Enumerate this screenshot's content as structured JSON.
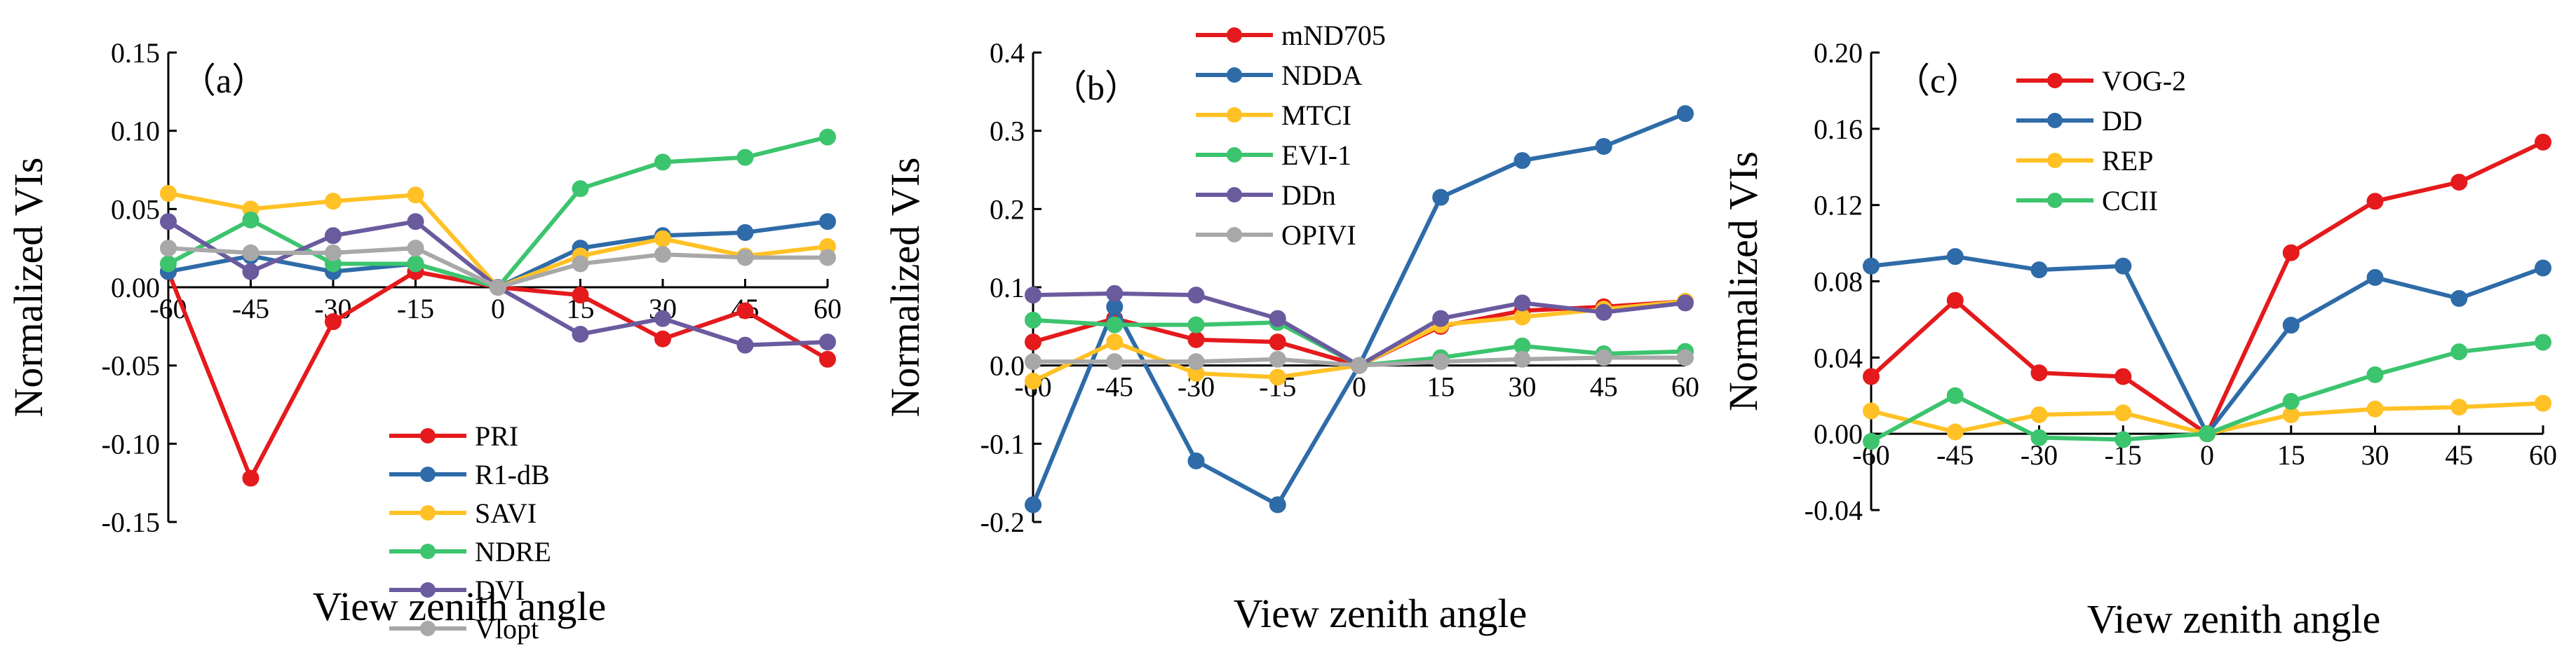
{
  "chart_data": [
    {
      "type": "line",
      "panel_label": "（a）",
      "xlabel": "View zenith angle",
      "ylabel": "Normalized VIs",
      "x": [
        -60,
        -45,
        -30,
        -15,
        0,
        15,
        30,
        45,
        60
      ],
      "x_ticks": [
        "-60",
        "-45",
        "-30",
        "-15",
        "0",
        "15",
        "30",
        "45",
        "60"
      ],
      "ylim": [
        -0.15,
        0.15
      ],
      "y_ticks": [
        "-0.15",
        "-0.10",
        "-0.05",
        "0.00",
        "0.05",
        "0.10",
        "0.15"
      ],
      "y_tick_values": [
        -0.15,
        -0.1,
        -0.05,
        0.0,
        0.05,
        0.1,
        0.15
      ],
      "legend_position": "bottom-center",
      "series": [
        {
          "name": "PRI",
          "color": "#e41a1c",
          "values": [
            0.01,
            -0.122,
            -0.022,
            0.01,
            0.0,
            -0.005,
            -0.033,
            -0.015,
            -0.046
          ]
        },
        {
          "name": "R1-dB",
          "color": "#2e6ba8",
          "values": [
            0.01,
            0.02,
            0.01,
            0.015,
            0.0,
            0.025,
            0.033,
            0.035,
            0.042
          ]
        },
        {
          "name": "SAVI",
          "color": "#ffc125",
          "values": [
            0.06,
            0.05,
            0.055,
            0.059,
            0.0,
            0.02,
            0.031,
            0.02,
            0.026
          ]
        },
        {
          "name": "NDRE",
          "color": "#3cc46e",
          "values": [
            0.015,
            0.043,
            0.015,
            0.015,
            0.0,
            0.063,
            0.08,
            0.083,
            0.096
          ]
        },
        {
          "name": "DVI",
          "color": "#6a5a9e",
          "values": [
            0.042,
            0.01,
            0.033,
            0.042,
            0.0,
            -0.03,
            -0.02,
            -0.037,
            -0.035
          ]
        },
        {
          "name": "Vlopt",
          "color": "#a8a8a8",
          "values": [
            0.025,
            0.022,
            0.022,
            0.025,
            0.0,
            0.015,
            0.021,
            0.019,
            0.019
          ]
        }
      ]
    },
    {
      "type": "line",
      "panel_label": "（b）",
      "xlabel": "View zenith angle",
      "ylabel": "Normalized VIs",
      "x": [
        -60,
        -45,
        -30,
        -15,
        0,
        15,
        30,
        45,
        60
      ],
      "x_ticks": [
        "-60",
        "-45",
        "-30",
        "-15",
        "0",
        "15",
        "30",
        "45",
        "60"
      ],
      "ylim": [
        -0.2,
        0.4
      ],
      "y_ticks": [
        "-0.2",
        "-0.1",
        "0.0",
        "0.1",
        "0.2",
        "0.3",
        "0.4"
      ],
      "y_tick_values": [
        -0.2,
        -0.1,
        0.0,
        0.1,
        0.2,
        0.3,
        0.4
      ],
      "legend_position": "top-left",
      "series": [
        {
          "name": "mND705",
          "color": "#e41a1c",
          "values": [
            0.03,
            0.06,
            0.033,
            0.03,
            0.0,
            0.05,
            0.07,
            0.075,
            0.082
          ]
        },
        {
          "name": "NDDA",
          "color": "#2e6ba8",
          "values": [
            -0.178,
            0.075,
            -0.122,
            -0.178,
            0.0,
            0.215,
            0.262,
            0.28,
            0.322
          ]
        },
        {
          "name": "MTCI",
          "color": "#ffc125",
          "values": [
            -0.02,
            0.03,
            -0.01,
            -0.015,
            0.0,
            0.052,
            0.062,
            0.072,
            0.082
          ]
        },
        {
          "name": "EVI-1",
          "color": "#3cc46e",
          "values": [
            0.058,
            0.052,
            0.052,
            0.055,
            0.0,
            0.01,
            0.025,
            0.015,
            0.018
          ]
        },
        {
          "name": "DDn",
          "color": "#6a5a9e",
          "values": [
            0.09,
            0.092,
            0.09,
            0.06,
            0.0,
            0.06,
            0.08,
            0.068,
            0.08
          ]
        },
        {
          "name": "OPIVI",
          "color": "#a8a8a8",
          "values": [
            0.005,
            0.005,
            0.005,
            0.008,
            0.0,
            0.005,
            0.008,
            0.01,
            0.01
          ]
        }
      ]
    },
    {
      "type": "line",
      "panel_label": "（c）",
      "xlabel": "View zenith angle",
      "ylabel": "Normalized VIs",
      "x": [
        -60,
        -45,
        -30,
        -15,
        0,
        15,
        30,
        45,
        60
      ],
      "x_ticks": [
        "-60",
        "-45",
        "-30",
        "-15",
        "0",
        "15",
        "30",
        "45",
        "60"
      ],
      "ylim": [
        -0.04,
        0.2
      ],
      "y_ticks": [
        "-0.04",
        "0.00",
        "0.04",
        "0.08",
        "0.12",
        "0.16",
        "0.20"
      ],
      "y_tick_values": [
        -0.04,
        0.0,
        0.04,
        0.08,
        0.12,
        0.16,
        0.2
      ],
      "legend_position": "top-left",
      "series": [
        {
          "name": "VOG-2",
          "color": "#e41a1c",
          "values": [
            0.03,
            0.07,
            0.032,
            0.03,
            0.0,
            0.095,
            0.122,
            0.132,
            0.153
          ]
        },
        {
          "name": "DD",
          "color": "#2e6ba8",
          "values": [
            0.088,
            0.093,
            0.086,
            0.088,
            0.0,
            0.057,
            0.082,
            0.071,
            0.087
          ]
        },
        {
          "name": "REP",
          "color": "#ffc125",
          "values": [
            0.012,
            0.001,
            0.01,
            0.011,
            0.0,
            0.01,
            0.013,
            0.014,
            0.016
          ]
        },
        {
          "name": "CCII",
          "color": "#3cc46e",
          "values": [
            -0.004,
            0.02,
            -0.002,
            -0.003,
            0.0,
            0.017,
            0.031,
            0.043,
            0.048
          ]
        }
      ]
    }
  ]
}
